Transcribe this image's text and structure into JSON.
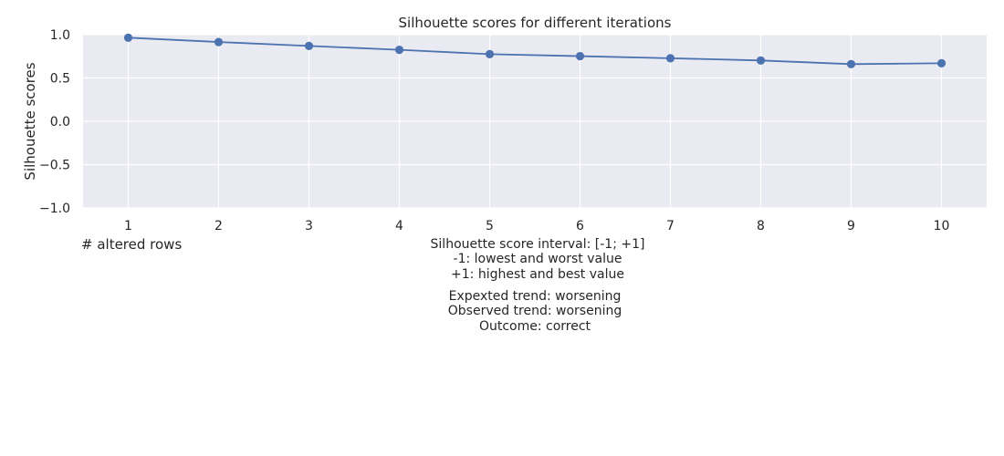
{
  "chart_data": {
    "type": "line",
    "title": "Silhouette scores for different iterations",
    "xlabel": "# altered rows",
    "ylabel": "Silhouette scores",
    "x": [
      1,
      2,
      3,
      4,
      5,
      6,
      7,
      8,
      9,
      10
    ],
    "series": [
      {
        "values": [
          0.965,
          0.915,
          0.87,
          0.825,
          0.775,
          0.752,
          0.728,
          0.702,
          0.66,
          0.67
        ]
      }
    ],
    "xlim": [
      0.5,
      10.5
    ],
    "ylim": [
      -1.0,
      1.0
    ],
    "x_ticks": [
      "1",
      "2",
      "3",
      "4",
      "5",
      "6",
      "7",
      "8",
      "9",
      "10"
    ],
    "y_ticks": [
      "1.0",
      "0.5",
      "0.0",
      "−0.5",
      "−1.0"
    ],
    "y_tick_values": [
      1.0,
      0.5,
      0.0,
      -0.5,
      -1.0
    ],
    "grid": true,
    "colors": {
      "line": "#4c72b0",
      "plot_background": "#eaeaf2",
      "grid": "#ffffff"
    },
    "annotations": {
      "interval": [
        "Silhouette score interval: [-1; +1]",
        "-1: lowest and worst value",
        "+1: highest and best value"
      ],
      "trend": [
        "Expexted trend: worsening",
        "Observed trend: worsening",
        "Outcome: correct"
      ]
    }
  }
}
